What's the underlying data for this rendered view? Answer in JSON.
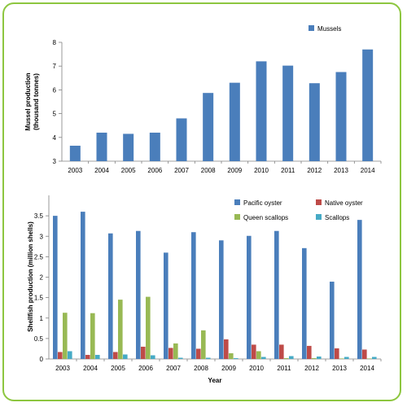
{
  "colors": {
    "border": "#8dc63f",
    "pacific": "#4a7ebb",
    "native": "#be4b48",
    "queen": "#98b954",
    "scallops": "#46aac5",
    "mussels": "#4a7ebb"
  },
  "chart_data": [
    {
      "type": "bar",
      "categories": [
        "2003",
        "2004",
        "2005",
        "2006",
        "2007",
        "2008",
        "2009",
        "2010",
        "2011",
        "2012",
        "2013",
        "2014"
      ],
      "series": [
        {
          "name": "Mussels",
          "values": [
            3.65,
            4.2,
            4.15,
            4.2,
            4.8,
            5.87,
            6.3,
            7.2,
            7.02,
            6.28,
            6.75,
            7.7
          ]
        }
      ],
      "xlabel": "",
      "ylabel_line1": "Mussel production",
      "ylabel_line2": "(thousand tonnes)",
      "ylim": [
        3,
        8
      ],
      "yticks": [
        3,
        4,
        5,
        6,
        7,
        8
      ],
      "legend_position": "top-right",
      "grid": false
    },
    {
      "type": "bar",
      "categories": [
        "2003",
        "2004",
        "2005",
        "2006",
        "2007",
        "2008",
        "2009",
        "2010",
        "2011",
        "2012",
        "2013",
        "2014"
      ],
      "series": [
        {
          "name": "Pacific oyster",
          "values": [
            3.5,
            3.6,
            3.07,
            3.13,
            2.6,
            3.1,
            2.9,
            3.01,
            3.13,
            2.71,
            1.89,
            3.4
          ]
        },
        {
          "name": "Native oyster",
          "values": [
            0.17,
            0.1,
            0.17,
            0.3,
            0.27,
            0.25,
            0.48,
            0.35,
            0.35,
            0.32,
            0.26,
            0.23
          ]
        },
        {
          "name": "Queen scallops",
          "values": [
            1.13,
            1.12,
            1.45,
            1.52,
            0.38,
            0.7,
            0.14,
            0.19,
            0.02,
            0.02,
            0.01,
            0.01
          ]
        },
        {
          "name": "Scallops",
          "values": [
            0.19,
            0.1,
            0.11,
            0.09,
            0.03,
            0.03,
            0.02,
            0.05,
            0.07,
            0.06,
            0.05,
            0.05
          ]
        }
      ],
      "xlabel": "Year",
      "ylabel": "Shellfish production (million shells)",
      "ylim": [
        0,
        4
      ],
      "yticks": [
        "0",
        "0.5",
        "1",
        "1.5",
        "2",
        "2.5",
        "3",
        "3.5"
      ],
      "legend_position": "top-right",
      "grid": false
    }
  ]
}
